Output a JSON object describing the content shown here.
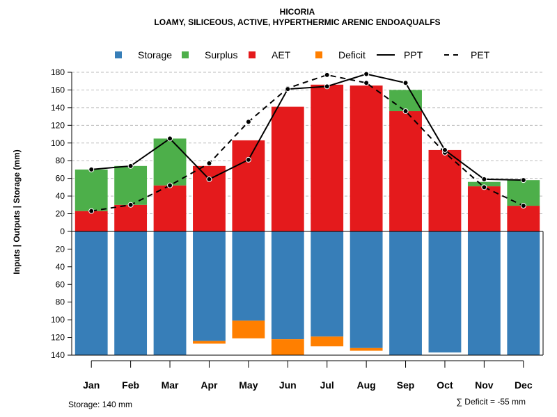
{
  "chart_data": {
    "type": "bar",
    "title": "HICORIA",
    "subtitle": "LOAMY, SILICEOUS, ACTIVE, HYPERTHERMIC ARENIC ENDOAQUALFS",
    "ylabel": "Inputs | Outputs | Storage    (mm)",
    "ylim": [
      -140,
      180
    ],
    "y_ticks": [
      180,
      160,
      140,
      120,
      100,
      80,
      60,
      40,
      20,
      0,
      -20,
      -40,
      -60,
      -80,
      -100,
      -120,
      -140
    ],
    "y_tick_labels": [
      "180",
      "160",
      "140",
      "120",
      "100",
      "80",
      "60",
      "40",
      "20",
      "0",
      "20",
      "40",
      "60",
      "80",
      "100",
      "120",
      "140"
    ],
    "categories": [
      "Jan",
      "Feb",
      "Mar",
      "Apr",
      "May",
      "Jun",
      "Jul",
      "Aug",
      "Sep",
      "Oct",
      "Nov",
      "Dec"
    ],
    "legend": [
      "Storage",
      "Surplus",
      "AET",
      "Deficit",
      "PPT",
      "PET"
    ],
    "colors": {
      "storage": "#377eb8",
      "surplus": "#4daf4a",
      "aet": "#e41a1c",
      "deficit": "#ff7f00",
      "line": "#000000",
      "grid": "#bbbbbb"
    },
    "series": [
      {
        "name": "Storage",
        "values": [
          140,
          140,
          140,
          124,
          101,
          122,
          119,
          132,
          140,
          137,
          140,
          140
        ]
      },
      {
        "name": "Surplus",
        "values": [
          47,
          44,
          53,
          0,
          0,
          0,
          0,
          0,
          24,
          0,
          5,
          29
        ]
      },
      {
        "name": "AET",
        "values": [
          23,
          30,
          52,
          74,
          103,
          141,
          166,
          165,
          136,
          92,
          51,
          29
        ]
      },
      {
        "name": "Deficit",
        "values": [
          0,
          0,
          0,
          3,
          20,
          18,
          11,
          3,
          0,
          0,
          0,
          0
        ]
      },
      {
        "name": "PPT",
        "values": [
          70,
          74,
          105,
          59,
          81,
          161,
          164,
          178,
          168,
          92,
          59,
          58
        ]
      },
      {
        "name": "PET",
        "values": [
          23,
          30,
          52,
          77,
          124,
          162,
          177,
          168,
          136,
          89,
          50,
          29
        ]
      }
    ],
    "annotations": {
      "storage_note": "Storage: 140 mm",
      "deficit_sum": "∑ Deficit = -55 mm"
    }
  }
}
